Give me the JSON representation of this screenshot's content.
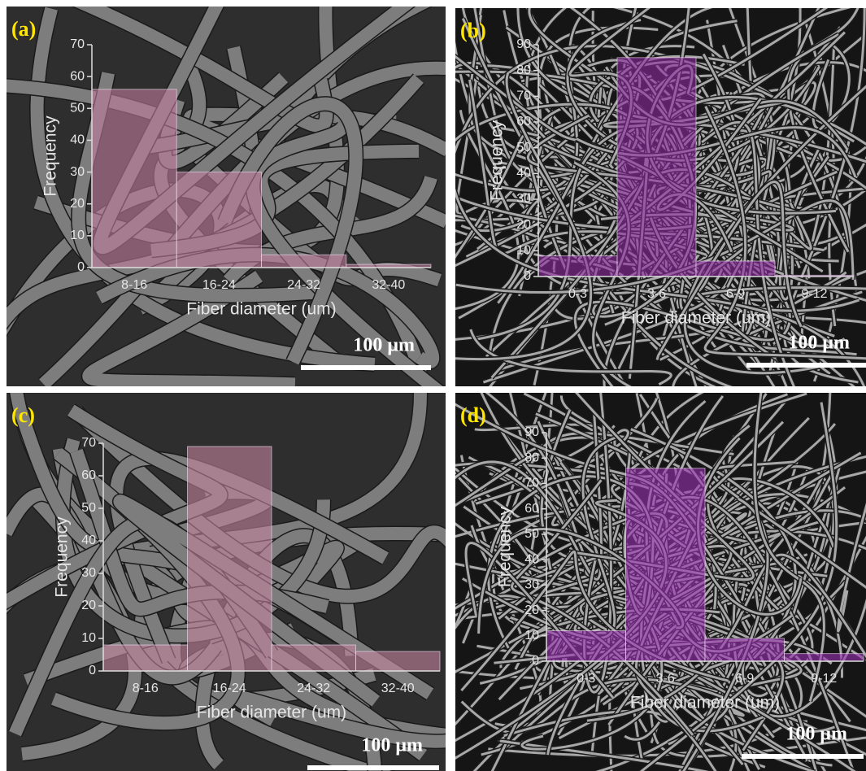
{
  "chart_data": [
    {
      "type": "bar",
      "panel": "(a)",
      "x_label": "Fiber diameter (um)",
      "y_label": "Frequency",
      "categories": [
        "8-16",
        "16-24",
        "24-32",
        "32-40"
      ],
      "values": [
        56,
        30,
        4,
        1
      ],
      "color": "#c27b9c",
      "ylim": [
        0,
        70
      ],
      "yticks": [
        0,
        10,
        20,
        30,
        40,
        50,
        60,
        70
      ],
      "scale_bar": "100 μm"
    },
    {
      "type": "bar",
      "panel": "(b)",
      "x_label": "Fiber diameter (um)",
      "y_label": "Frequency",
      "categories": [
        "0-3",
        "3-6",
        "6-9",
        "9-12"
      ],
      "values": [
        8,
        85,
        6,
        0.5
      ],
      "color": "#8e2aa0",
      "ylim": [
        0,
        90
      ],
      "yticks": [
        0,
        10,
        20,
        30,
        40,
        50,
        60,
        70,
        80,
        90
      ],
      "scale_bar": "100 μm"
    },
    {
      "type": "bar",
      "panel": "(c)",
      "x_label": "Fiber diameter (um)",
      "y_label": "Frequency",
      "categories": [
        "8-16",
        "16-24",
        "24-32",
        "32-40"
      ],
      "values": [
        8,
        69,
        8,
        6
      ],
      "color": "#c5849e",
      "ylim": [
        0,
        70
      ],
      "yticks": [
        0,
        10,
        20,
        30,
        40,
        50,
        60,
        70
      ],
      "scale_bar": "100 μm"
    },
    {
      "type": "bar",
      "panel": "(d)",
      "x_label": "Fiber diameter (um)",
      "y_label": "Frequency",
      "categories": [
        "0-3",
        "3-6",
        "6-9",
        "9-12"
      ],
      "values": [
        12,
        76,
        9,
        3
      ],
      "color": "#9a30b2",
      "ylim": [
        0,
        90
      ],
      "yticks": [
        0,
        10,
        20,
        30,
        40,
        50,
        60,
        70,
        80,
        90
      ],
      "scale_bar": "100 μm"
    }
  ]
}
